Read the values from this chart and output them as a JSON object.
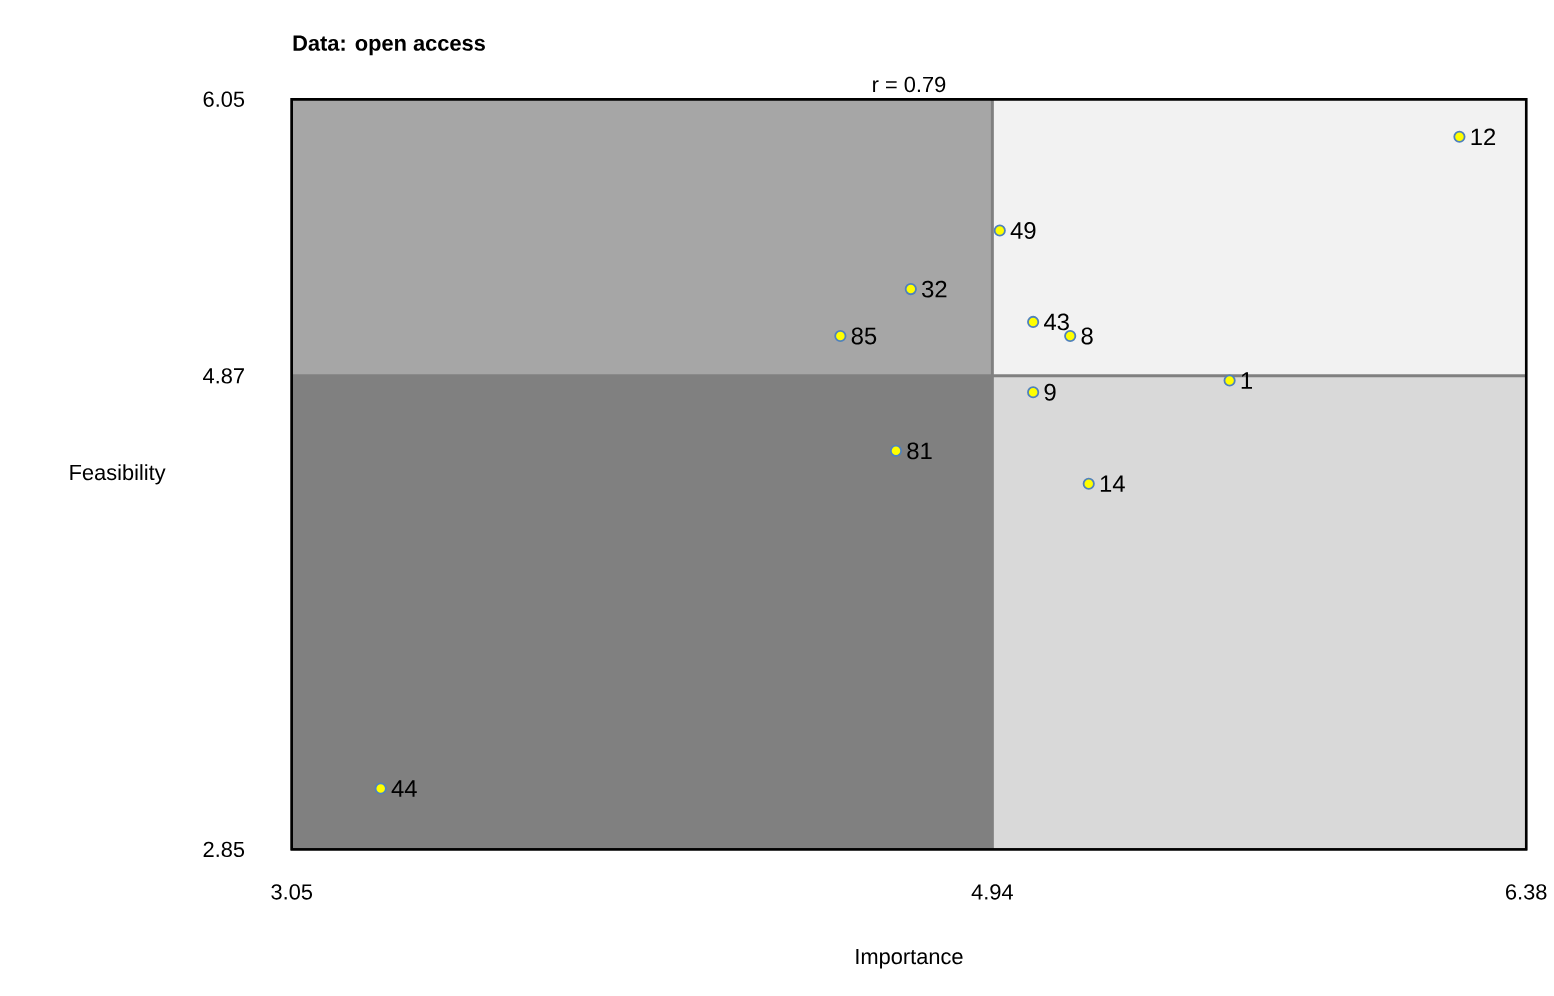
{
  "chart_data": {
    "type": "scatter",
    "title": "Data: open access",
    "subtitle": "r = 0.79",
    "xlabel": "Importance",
    "ylabel": "Feasibility",
    "xlim": [
      3.05,
      6.38
    ],
    "ylim": [
      2.85,
      6.05
    ],
    "xticks": [
      3.05,
      4.94,
      6.38
    ],
    "yticks": [
      2.85,
      4.87,
      6.05
    ],
    "grid": false,
    "series": [
      {
        "color": "#ffff00",
        "x": [
          6.2,
          4.96,
          4.72,
          5.05,
          5.15,
          4.53,
          5.58,
          5.05,
          4.68,
          5.2,
          3.29
        ],
        "values": [
          5.89,
          5.49,
          5.24,
          5.1,
          5.04,
          5.04,
          4.85,
          4.8,
          4.55,
          4.41,
          3.11
        ]
      }
    ],
    "ref_lines": [
      {
        "axis": "x",
        "value": 4.94,
        "color": "#808080"
      },
      {
        "axis": "y",
        "value": 4.87,
        "color": "#808080"
      }
    ],
    "bands": [
      {
        "axis": "x",
        "from": 3.05,
        "to": 4.94,
        "color": "#a6a6a6"
      },
      {
        "axis": "x",
        "from": 4.94,
        "to": 6.38,
        "color": "#f2f2f2"
      },
      {
        "axis": "x",
        "from": 3.05,
        "to": 4.94,
        "color": "#808080"
      },
      {
        "axis": "x",
        "from": 4.94,
        "to": 6.38,
        "color": "#d9d9d9"
      }
    ],
    "annotations": [
      {
        "text": "12",
        "x": 6.2,
        "y": 5.89
      },
      {
        "text": "49",
        "x": 4.96,
        "y": 5.49
      },
      {
        "text": "32",
        "x": 4.72,
        "y": 5.24
      },
      {
        "text": "43",
        "x": 5.05,
        "y": 5.1
      },
      {
        "text": "8",
        "x": 5.15,
        "y": 5.04
      },
      {
        "text": "85",
        "x": 4.53,
        "y": 5.04
      },
      {
        "text": "1",
        "x": 5.58,
        "y": 4.85
      },
      {
        "text": "9",
        "x": 5.05,
        "y": 4.8
      },
      {
        "text": "81",
        "x": 4.68,
        "y": 4.55
      },
      {
        "text": "14",
        "x": 5.2,
        "y": 4.41
      },
      {
        "text": "44",
        "x": 3.29,
        "y": 3.11
      }
    ]
  }
}
